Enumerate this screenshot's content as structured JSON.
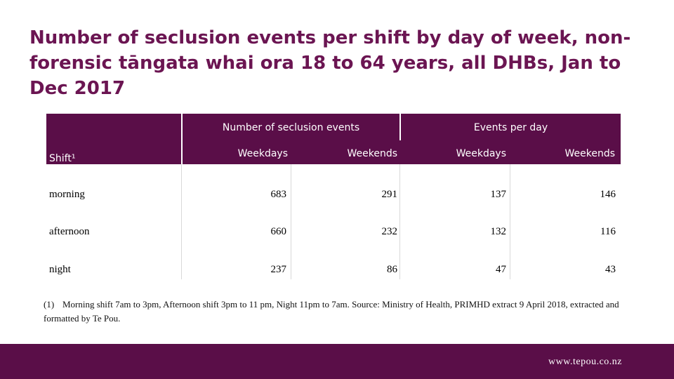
{
  "title": "Number of seclusion events per shift by day of week, non-forensic tāngata whai ora 18 to 64 years, all DHBs, Jan to Dec 2017",
  "table": {
    "group_headers": [
      "Number of seclusion events",
      "Events per day"
    ],
    "row_header": "Shift¹",
    "sub_headers": [
      "Weekdays",
      "Weekends",
      "Weekdays",
      "Weekends"
    ],
    "rows": [
      {
        "label": "morning",
        "values": [
          "683",
          "291",
          "137",
          "146"
        ]
      },
      {
        "label": "afternoon",
        "values": [
          "660",
          "232",
          "132",
          "116"
        ]
      },
      {
        "label": "night",
        "values": [
          "237",
          "86",
          "47",
          "43"
        ]
      }
    ]
  },
  "footnote": {
    "marker": "(1)",
    "text": "Morning shift 7am to 3pm, Afternoon shift 3pm to 11 pm, Night 11pm to 7am. Source: Ministry of Health, PRIMHD extract 9 April 2018, extracted and formatted by Te Pou."
  },
  "footer": {
    "url": "www.tepou.co.nz"
  },
  "colors": {
    "brand_purple": "#5a0e48",
    "title_purple": "#6b1552"
  }
}
